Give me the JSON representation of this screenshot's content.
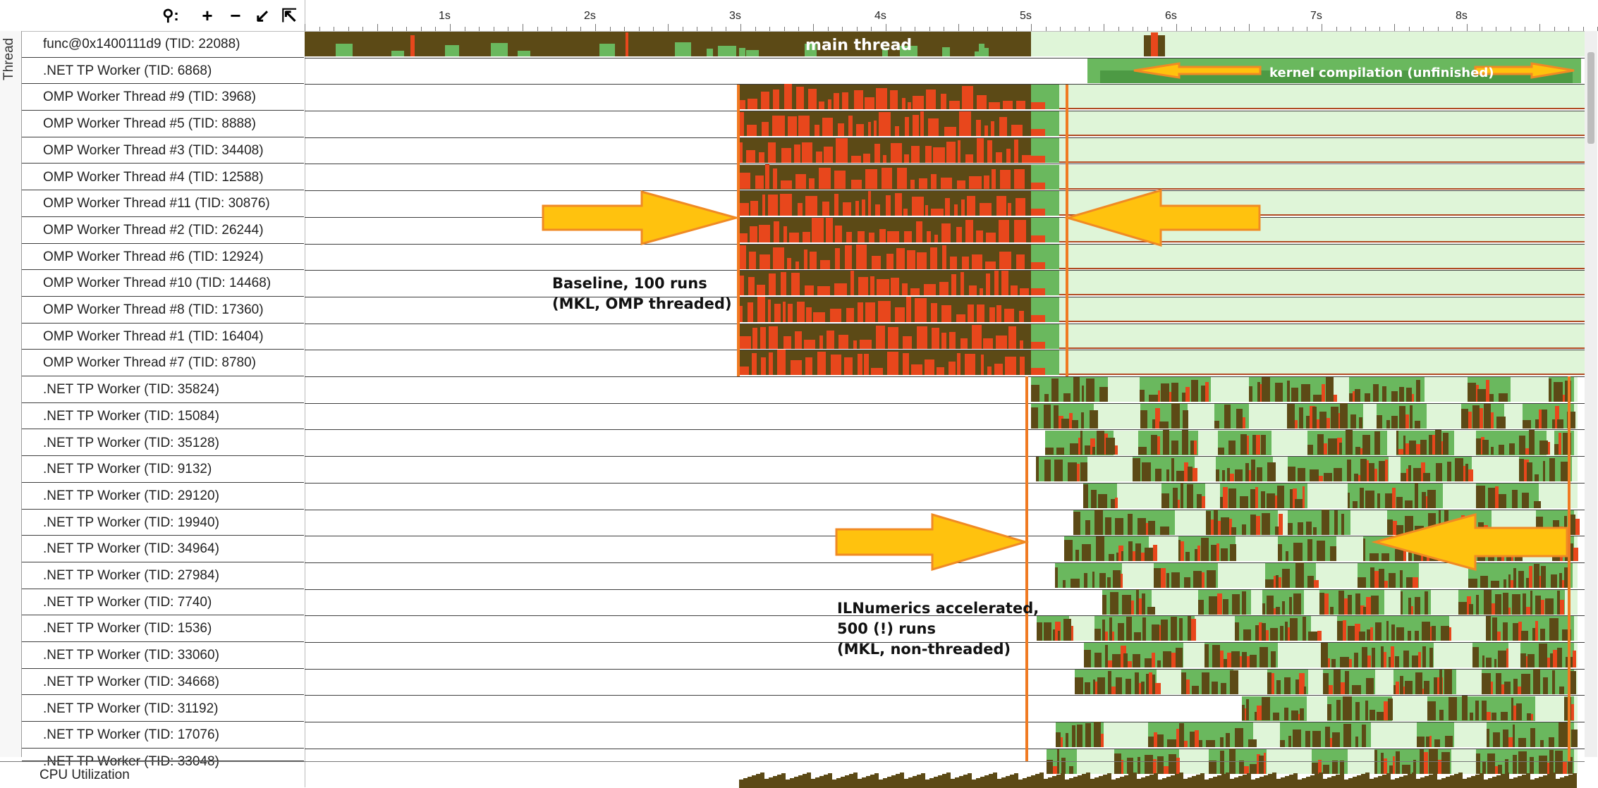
{
  "toolbar": {
    "icons": [
      "search-icon",
      "zoom-in-icon",
      "zoom-out-icon",
      "zoom-to-selection-icon",
      "reset-zoom-icon"
    ],
    "search_glyph": "⚲:",
    "zoom_in_glyph": "+",
    "zoom_out_glyph": "−",
    "zoom_sel_glyph": "↙",
    "reset_glyph": "⇱"
  },
  "axis_label": "Thread",
  "ruler": {
    "ticks": [
      "1s",
      "2s",
      "3s",
      "4s",
      "5s",
      "6s",
      "7s",
      "8s"
    ]
  },
  "threads": [
    {
      "label": "func@0x1400111d9 (TID: 22088)"
    },
    {
      "label": ".NET TP Worker (TID: 6868)"
    },
    {
      "label": "OMP Worker Thread #9 (TID: 3968)"
    },
    {
      "label": "OMP Worker Thread #5 (TID: 8888)"
    },
    {
      "label": "OMP Worker Thread #3 (TID: 34408)"
    },
    {
      "label": "OMP Worker Thread #4 (TID: 12588)"
    },
    {
      "label": "OMP Worker Thread #11 (TID: 30876)"
    },
    {
      "label": "OMP Worker Thread #2 (TID: 26244)"
    },
    {
      "label": "OMP Worker Thread #6 (TID: 12924)"
    },
    {
      "label": "OMP Worker Thread #10 (TID: 14468)"
    },
    {
      "label": "OMP Worker Thread #8 (TID: 17360)"
    },
    {
      "label": "OMP Worker Thread #1 (TID: 16404)"
    },
    {
      "label": "OMP Worker Thread #7 (TID: 8780)"
    },
    {
      "label": ".NET TP Worker (TID: 35824)"
    },
    {
      "label": ".NET TP Worker (TID: 15084)"
    },
    {
      "label": ".NET TP Worker (TID: 35128)"
    },
    {
      "label": ".NET TP Worker (TID: 9132)"
    },
    {
      "label": ".NET TP Worker (TID: 29120)"
    },
    {
      "label": ".NET TP Worker (TID: 19940)"
    },
    {
      "label": ".NET TP Worker (TID: 34964)"
    },
    {
      "label": ".NET TP Worker (TID: 27984)"
    },
    {
      "label": ".NET TP Worker (TID: 7740)"
    },
    {
      "label": ".NET TP Worker (TID: 1536)"
    },
    {
      "label": ".NET TP Worker (TID: 33060)"
    },
    {
      "label": ".NET TP Worker (TID: 34668)"
    },
    {
      "label": ".NET TP Worker (TID: 31192)"
    },
    {
      "label": ".NET TP Worker (TID: 17076)"
    },
    {
      "label": ".NET TP Worker (TID: 33048)"
    }
  ],
  "cpu_label": "CPU Utilization",
  "annotations": {
    "main_thread": "main thread",
    "kernel": "kernel compilation  (unfinished)",
    "baseline_line1": "Baseline, 100 runs",
    "baseline_line2": "(MKL, OMP threaded)",
    "ilnum_line1": "ILNumerics accelerated,",
    "ilnum_line2": "500 (!) runs",
    "ilnum_line3": "(MKL, non-threaded)"
  },
  "colors": {
    "running_dark": "#5c4a16",
    "spin_red": "#e8471c",
    "active_green": "#6ab85e",
    "idle_light": "#dff5d8",
    "arrow_fill": "#ffc20e",
    "arrow_stroke": "#f08a24",
    "marker": "#f07a22"
  }
}
